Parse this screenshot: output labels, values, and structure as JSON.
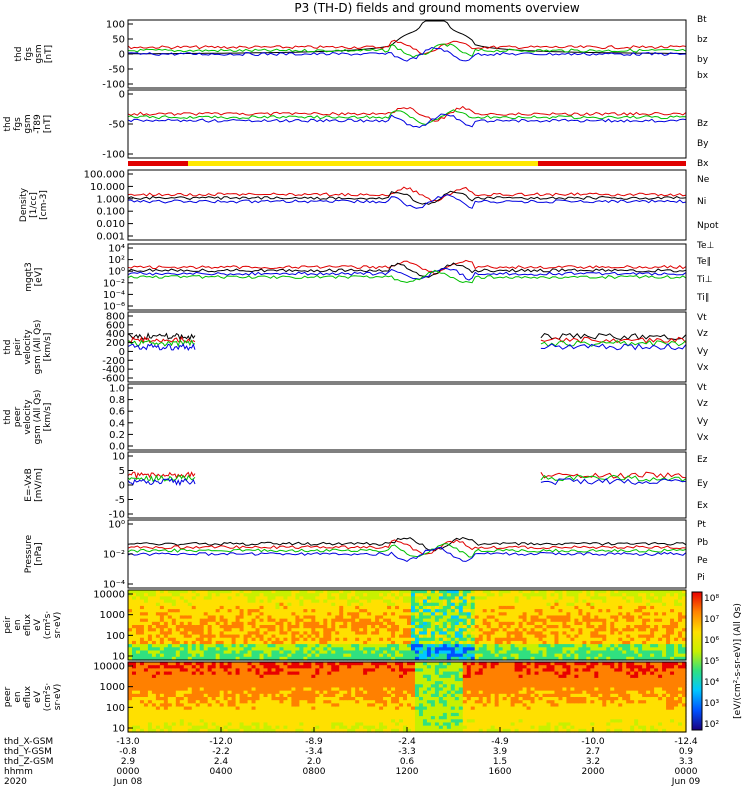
{
  "title": "P3 (TH-D) fields and ground moments overview",
  "chart_data": {
    "type": "line",
    "panels": [
      {
        "id": "fgs",
        "ylabel": [
          "thd",
          "fgs",
          "gsm",
          "[nT]"
        ],
        "yticks": [
          "100",
          "50",
          "0",
          "-50",
          "-100"
        ],
        "ylim": [
          -100,
          100
        ],
        "legend": [
          {
            "label": "Bt",
            "color": "#000000"
          },
          {
            "label": "bz",
            "color": "#e00000"
          },
          {
            "label": "by",
            "color": "#00c000"
          },
          {
            "label": "bx",
            "color": "#0000e0"
          }
        ]
      },
      {
        "id": "fgs-dlp",
        "ylabel": [
          "thd",
          "fgs",
          "gsm",
          "-T89",
          "[nT]"
        ],
        "yticks": [
          "0",
          "-50",
          "-100"
        ],
        "ylim": [
          -130,
          30
        ],
        "legend": [
          {
            "label": "Bz",
            "color": "#e00000"
          },
          {
            "label": "By",
            "color": "#00c000"
          },
          {
            "label": "Bx",
            "color": "#0000e0"
          }
        ]
      },
      {
        "id": "density",
        "ylabel": [
          "Density",
          "[1/cc]",
          "[cm-3]"
        ],
        "yticks": [
          "100.000",
          "10.000",
          "1.000",
          "0.100",
          "0.010",
          "0.001"
        ],
        "scale": "log",
        "legend": [
          {
            "label": "Ne",
            "color": "#e00000"
          },
          {
            "label": "Ni",
            "color": "#000000"
          },
          {
            "label": "Npot",
            "color": "#0000e0"
          }
        ]
      },
      {
        "id": "temperature",
        "ylabel": [
          "mgqt3",
          "[eV]"
        ],
        "yticks": [
          "10⁴",
          "10²",
          "10⁰",
          "10⁻²",
          "10⁻⁴",
          "10⁻⁶"
        ],
        "scale": "log",
        "legend": [
          {
            "label": "Te⊥",
            "color": "#e00000"
          },
          {
            "label": "Te∥",
            "color": "#000000"
          },
          {
            "label": "Ti⊥",
            "color": "#0000e0"
          },
          {
            "label": "Ti∥",
            "color": "#00c000"
          }
        ]
      },
      {
        "id": "peir-velocity",
        "ylabel": [
          "thd",
          "peir",
          "velocity",
          "gsm (All Qs)",
          "[km/s]"
        ],
        "yticks": [
          "800",
          "600",
          "400",
          "200",
          "0",
          "-200",
          "-400",
          "-600"
        ],
        "ylim": [
          -600,
          800
        ],
        "legend": [
          {
            "label": "Vt",
            "color": "#000000"
          },
          {
            "label": "Vz",
            "color": "#e00000"
          },
          {
            "label": "Vy",
            "color": "#00c000"
          },
          {
            "label": "Vx",
            "color": "#0000e0"
          }
        ]
      },
      {
        "id": "peer-velocity",
        "ylabel": [
          "thd",
          "peer",
          "velocity",
          "gsm (All Qs)",
          "[km/s]"
        ],
        "yticks": [
          "1.0",
          "0.8",
          "0.6",
          "0.4",
          "0.2",
          "0.0"
        ],
        "ylim": [
          0,
          1
        ],
        "legend": [
          {
            "label": "Vt",
            "color": "#000000"
          },
          {
            "label": "Vz",
            "color": "#e00000"
          },
          {
            "label": "Vy",
            "color": "#00c000"
          },
          {
            "label": "Vx",
            "color": "#0000e0"
          }
        ]
      },
      {
        "id": "efield",
        "ylabel": [
          "E=-VxB",
          "[mV/m]"
        ],
        "yticks": [
          "10",
          "5",
          "0",
          "-5",
          "-10"
        ],
        "ylim": [
          -12,
          12
        ],
        "legend": [
          {
            "label": "Ez",
            "color": "#e00000"
          },
          {
            "label": "Ey",
            "color": "#00c000"
          },
          {
            "label": "Ex",
            "color": "#0000e0"
          }
        ]
      },
      {
        "id": "pressure",
        "ylabel": [
          "Pressure",
          "[nPa]"
        ],
        "yticks": [
          "10⁰",
          "10⁻²",
          "10⁻⁴"
        ],
        "scale": "log",
        "legend": [
          {
            "label": "Pt",
            "color": "#000000"
          },
          {
            "label": "Pb",
            "color": "#e00000"
          },
          {
            "label": "Pe",
            "color": "#00c000"
          },
          {
            "label": "Pi",
            "color": "#0000e0"
          }
        ]
      },
      {
        "id": "peir-spec",
        "type": "heatmap",
        "ylabel": [
          "thd",
          "peir",
          "en",
          "eflux",
          "eV",
          "(cm²s·",
          "sr·eV)"
        ],
        "yticks": [
          "10000",
          "1000",
          "100",
          "10"
        ]
      },
      {
        "id": "peer-spec",
        "type": "heatmap",
        "ylabel": [
          "thd",
          "peer",
          "en",
          "eflux",
          "eV",
          "(cm²s·",
          "sr·eV)"
        ],
        "yticks": [
          "10000",
          "1000",
          "100",
          "10"
        ]
      }
    ],
    "colorbar": {
      "label": "[eV/(cm²-s-sr-eV)] (All Qs)",
      "ticks": [
        "10⁸",
        "10⁷",
        "10⁶",
        "10⁵",
        "10⁴",
        "10³",
        "10²"
      ]
    },
    "x_axis": {
      "row_labels": [
        "thd_X-GSM",
        "thd_Y-GSM",
        "thd_Z-GSM",
        "hhmm",
        "2020"
      ],
      "columns": [
        [
          "-13.0",
          "-0.8",
          "2.9",
          "0000",
          "Jun 08"
        ],
        [
          "-12.0",
          "-2.2",
          "2.4",
          "0400",
          ""
        ],
        [
          "-8.9",
          "-3.4",
          "2.0",
          "0800",
          ""
        ],
        [
          "-2.4",
          "-3.3",
          "0.6",
          "1200",
          ""
        ],
        [
          "-4.9",
          "3.9",
          "1.5",
          "1600",
          ""
        ],
        [
          "-10.0",
          "2.7",
          "3.2",
          "2000",
          ""
        ],
        [
          "-12.4",
          "0.9",
          "3.3",
          "0000",
          "Jun 09"
        ]
      ]
    }
  }
}
